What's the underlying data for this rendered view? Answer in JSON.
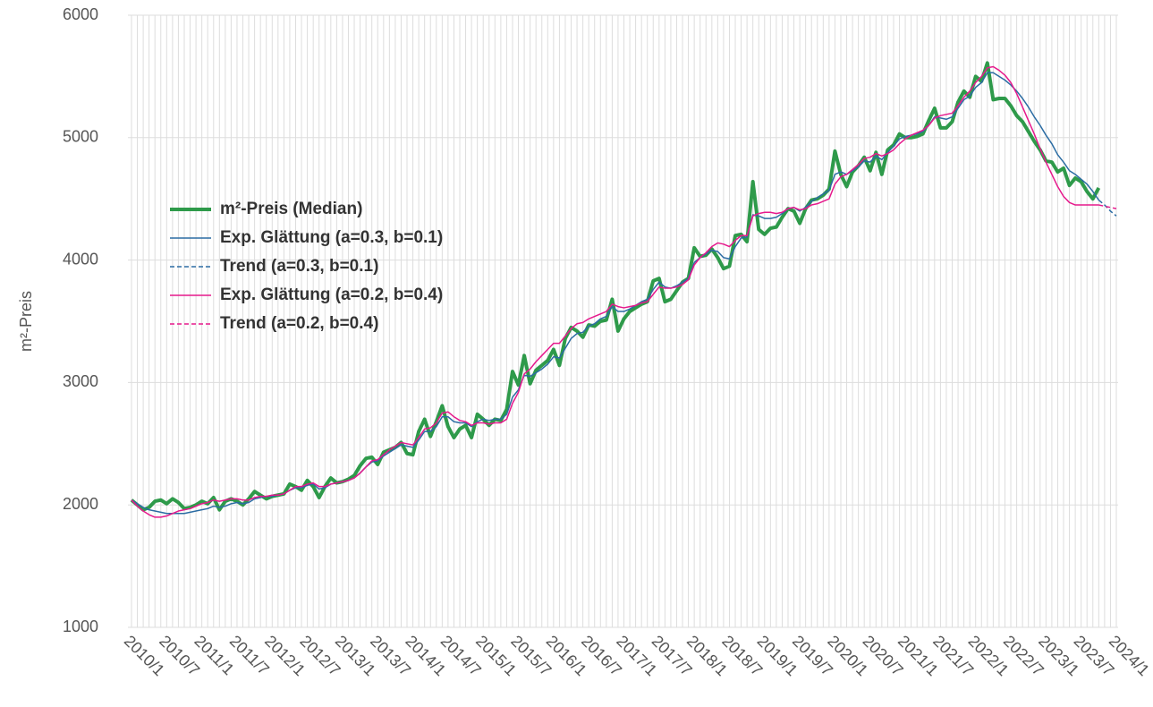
{
  "chart_data": {
    "type": "line",
    "ylabel": "m²-Preis",
    "categories": [
      "2010/1",
      null,
      null,
      null,
      null,
      null,
      "2010/7",
      null,
      null,
      null,
      null,
      null,
      "2011/1",
      null,
      null,
      null,
      null,
      null,
      "2011/7",
      null,
      null,
      null,
      null,
      null,
      "2012/1",
      null,
      null,
      null,
      null,
      null,
      "2012/7",
      null,
      null,
      null,
      null,
      null,
      "2013/1",
      null,
      null,
      null,
      null,
      null,
      "2013/7",
      null,
      null,
      null,
      null,
      null,
      "2014/1",
      null,
      null,
      null,
      null,
      null,
      "2014/7",
      null,
      null,
      null,
      null,
      null,
      "2015/1",
      null,
      null,
      null,
      null,
      null,
      "2015/7",
      null,
      null,
      null,
      null,
      null,
      "2016/1",
      null,
      null,
      null,
      null,
      null,
      "2016/7",
      null,
      null,
      null,
      null,
      null,
      "2017/1",
      null,
      null,
      null,
      null,
      null,
      "2017/7",
      null,
      null,
      null,
      null,
      null,
      "2018/1",
      null,
      null,
      null,
      null,
      null,
      "2018/7",
      null,
      null,
      null,
      null,
      null,
      "2019/1",
      null,
      null,
      null,
      null,
      null,
      "2019/7",
      null,
      null,
      null,
      null,
      null,
      "2020/1",
      null,
      null,
      null,
      null,
      null,
      "2020/7",
      null,
      null,
      null,
      null,
      null,
      "2021/1",
      null,
      null,
      null,
      null,
      null,
      "2021/7",
      null,
      null,
      null,
      null,
      null,
      "2022/1",
      null,
      null,
      null,
      null,
      null,
      "2022/7",
      null,
      null,
      null,
      null,
      null,
      "2023/1",
      null,
      null,
      null,
      null,
      null,
      "2023/7",
      null,
      null,
      null,
      null,
      null,
      "2024/1"
    ],
    "series": [
      {
        "name": "m²-Preis (Median)",
        "color": "#2e9a4a",
        "linewidth": 4,
        "dashed": false,
        "values": [
          2040,
          2000,
          1960,
          1980,
          2030,
          2040,
          2010,
          2050,
          2020,
          1970,
          1980,
          2000,
          2030,
          2010,
          2060,
          1960,
          2030,
          2050,
          2030,
          2000,
          2050,
          2110,
          2080,
          2050,
          2070,
          2080,
          2090,
          2170,
          2150,
          2120,
          2200,
          2150,
          2060,
          2150,
          2220,
          2180,
          2190,
          2210,
          2240,
          2320,
          2380,
          2390,
          2330,
          2430,
          2450,
          2470,
          2510,
          2420,
          2410,
          2600,
          2700,
          2560,
          2680,
          2810,
          2640,
          2550,
          2620,
          2650,
          2550,
          2740,
          2700,
          2650,
          2700,
          2690,
          2780,
          3090,
          2980,
          3220,
          2990,
          3100,
          3140,
          3180,
          3270,
          3140,
          3360,
          3450,
          3420,
          3370,
          3470,
          3460,
          3500,
          3510,
          3680,
          3420,
          3520,
          3580,
          3610,
          3640,
          3660,
          3830,
          3850,
          3660,
          3680,
          3750,
          3820,
          3850,
          4100,
          4030,
          4040,
          4090,
          4020,
          3930,
          3950,
          4200,
          4210,
          4150,
          4640,
          4250,
          4210,
          4260,
          4270,
          4350,
          4420,
          4400,
          4300,
          4420,
          4490,
          4500,
          4530,
          4580,
          4890,
          4700,
          4600,
          4720,
          4770,
          4840,
          4730,
          4880,
          4700,
          4900,
          4940,
          5030,
          5000,
          5000,
          5010,
          5030,
          5140,
          5240,
          5080,
          5080,
          5130,
          5290,
          5380,
          5330,
          5500,
          5460,
          5610,
          5310,
          5320,
          5320,
          5260,
          5180,
          5130,
          5050,
          4970,
          4900,
          4810,
          4800,
          4720,
          4750,
          4610,
          4670,
          4640,
          4560,
          4500,
          4590,
          null,
          null,
          null
        ]
      },
      {
        "name": "Exp. Glättung (a=0.3, b=0.1)",
        "color": "#2b6ca3",
        "linewidth": 1.5,
        "dashed": false,
        "values": [
          2040,
          2010,
          1980,
          1960,
          1950,
          1940,
          1930,
          1930,
          1930,
          1930,
          1940,
          1950,
          1960,
          1970,
          1990,
          1980,
          1990,
          2010,
          2020,
          2010,
          2020,
          2050,
          2060,
          2070,
          2070,
          2080,
          2090,
          2120,
          2140,
          2140,
          2160,
          2170,
          2130,
          2140,
          2170,
          2180,
          2190,
          2200,
          2220,
          2260,
          2310,
          2350,
          2360,
          2400,
          2430,
          2460,
          2490,
          2480,
          2470,
          2530,
          2600,
          2600,
          2640,
          2720,
          2720,
          2680,
          2670,
          2670,
          2640,
          2680,
          2700,
          2690,
          2700,
          2700,
          2740,
          2880,
          2940,
          3060,
          3050,
          3080,
          3110,
          3150,
          3210,
          3200,
          3280,
          3360,
          3400,
          3410,
          3460,
          3480,
          3520,
          3540,
          3620,
          3580,
          3580,
          3600,
          3630,
          3660,
          3680,
          3760,
          3820,
          3780,
          3770,
          3790,
          3820,
          3850,
          3980,
          4020,
          4050,
          4080,
          4070,
          4020,
          4010,
          4110,
          4180,
          4190,
          4370,
          4360,
          4340,
          4340,
          4350,
          4380,
          4420,
          4430,
          4400,
          4430,
          4480,
          4510,
          4540,
          4570,
          4700,
          4720,
          4700,
          4730,
          4760,
          4810,
          4800,
          4850,
          4820,
          4880,
          4930,
          4990,
          5010,
          5020,
          5030,
          5050,
          5100,
          5170,
          5160,
          5150,
          5170,
          5240,
          5310,
          5340,
          5410,
          5450,
          5530,
          5530,
          5500,
          5470,
          5430,
          5380,
          5320,
          5250,
          5170,
          5100,
          5020,
          4950,
          4860,
          4800,
          4730,
          4700,
          4660,
          4620,
          4560,
          4490,
          null,
          null,
          null
        ]
      },
      {
        "name": "Trend (a=0.3, b=0.1)",
        "color": "#2b6ca3",
        "linewidth": 1.5,
        "dashed": true,
        "values": [
          null,
          null,
          null,
          null,
          null,
          null,
          null,
          null,
          null,
          null,
          null,
          null,
          null,
          null,
          null,
          null,
          null,
          null,
          null,
          null,
          null,
          null,
          null,
          null,
          null,
          null,
          null,
          null,
          null,
          null,
          null,
          null,
          null,
          null,
          null,
          null,
          null,
          null,
          null,
          null,
          null,
          null,
          null,
          null,
          null,
          null,
          null,
          null,
          null,
          null,
          null,
          null,
          null,
          null,
          null,
          null,
          null,
          null,
          null,
          null,
          null,
          null,
          null,
          null,
          null,
          null,
          null,
          null,
          null,
          null,
          null,
          null,
          null,
          null,
          null,
          null,
          null,
          null,
          null,
          null,
          null,
          null,
          null,
          null,
          null,
          null,
          null,
          null,
          null,
          null,
          null,
          null,
          null,
          null,
          null,
          null,
          null,
          null,
          null,
          null,
          null,
          null,
          null,
          null,
          null,
          null,
          null,
          null,
          null,
          null,
          null,
          null,
          null,
          null,
          null,
          null,
          null,
          null,
          null,
          null,
          null,
          null,
          null,
          null,
          null,
          null,
          null,
          null,
          null,
          null,
          null,
          null,
          null,
          null,
          null,
          null,
          null,
          null,
          null,
          null,
          null,
          null,
          null,
          null,
          null,
          null,
          null,
          null,
          null,
          null,
          null,
          null,
          null,
          null,
          null,
          null,
          null,
          null,
          null,
          null,
          null,
          null,
          null,
          null,
          null,
          4490,
          4450,
          4400,
          4360
        ]
      },
      {
        "name": "Exp. Glättung (a=0.2, b=0.4)",
        "color": "#e6198c",
        "linewidth": 1.5,
        "dashed": false,
        "values": [
          2040,
          1990,
          1950,
          1920,
          1900,
          1900,
          1910,
          1930,
          1950,
          1960,
          1970,
          1990,
          2010,
          2020,
          2040,
          2030,
          2040,
          2050,
          2050,
          2040,
          2040,
          2060,
          2070,
          2070,
          2080,
          2080,
          2090,
          2120,
          2150,
          2150,
          2170,
          2180,
          2150,
          2150,
          2170,
          2180,
          2190,
          2200,
          2220,
          2260,
          2310,
          2360,
          2370,
          2410,
          2450,
          2480,
          2510,
          2500,
          2490,
          2550,
          2620,
          2630,
          2670,
          2750,
          2760,
          2720,
          2690,
          2680,
          2650,
          2670,
          2670,
          2660,
          2670,
          2670,
          2700,
          2830,
          2920,
          3070,
          3110,
          3170,
          3220,
          3270,
          3320,
          3320,
          3380,
          3440,
          3480,
          3490,
          3520,
          3540,
          3560,
          3580,
          3640,
          3620,
          3610,
          3620,
          3630,
          3650,
          3660,
          3720,
          3780,
          3770,
          3770,
          3780,
          3800,
          3840,
          3960,
          4020,
          4060,
          4110,
          4140,
          4130,
          4110,
          4160,
          4200,
          4200,
          4360,
          4380,
          4390,
          4390,
          4380,
          4390,
          4420,
          4430,
          4410,
          4420,
          4450,
          4460,
          4480,
          4500,
          4620,
          4680,
          4700,
          4740,
          4780,
          4830,
          4840,
          4870,
          4850,
          4870,
          4900,
          4950,
          4990,
          5020,
          5040,
          5060,
          5100,
          5160,
          5180,
          5190,
          5200,
          5260,
          5330,
          5380,
          5450,
          5500,
          5570,
          5580,
          5550,
          5510,
          5450,
          5360,
          5250,
          5140,
          5030,
          4910,
          4800,
          4700,
          4600,
          4520,
          4470,
          4450,
          4450,
          4450,
          4450,
          4450,
          null,
          null,
          null
        ]
      },
      {
        "name": "Trend (a=0.2, b=0.4)",
        "color": "#e6198c",
        "linewidth": 1.5,
        "dashed": true,
        "values": [
          null,
          null,
          null,
          null,
          null,
          null,
          null,
          null,
          null,
          null,
          null,
          null,
          null,
          null,
          null,
          null,
          null,
          null,
          null,
          null,
          null,
          null,
          null,
          null,
          null,
          null,
          null,
          null,
          null,
          null,
          null,
          null,
          null,
          null,
          null,
          null,
          null,
          null,
          null,
          null,
          null,
          null,
          null,
          null,
          null,
          null,
          null,
          null,
          null,
          null,
          null,
          null,
          null,
          null,
          null,
          null,
          null,
          null,
          null,
          null,
          null,
          null,
          null,
          null,
          null,
          null,
          null,
          null,
          null,
          null,
          null,
          null,
          null,
          null,
          null,
          null,
          null,
          null,
          null,
          null,
          null,
          null,
          null,
          null,
          null,
          null,
          null,
          null,
          null,
          null,
          null,
          null,
          null,
          null,
          null,
          null,
          null,
          null,
          null,
          null,
          null,
          null,
          null,
          null,
          null,
          null,
          null,
          null,
          null,
          null,
          null,
          null,
          null,
          null,
          null,
          null,
          null,
          null,
          null,
          null,
          null,
          null,
          null,
          null,
          null,
          null,
          null,
          null,
          null,
          null,
          null,
          null,
          null,
          null,
          null,
          null,
          null,
          null,
          null,
          null,
          null,
          null,
          null,
          null,
          null,
          null,
          null,
          null,
          null,
          null,
          null,
          null,
          null,
          null,
          null,
          null,
          null,
          null,
          null,
          null,
          null,
          null,
          null,
          null,
          null,
          4450,
          4440,
          4430,
          4420
        ]
      }
    ],
    "ylim": [
      1000,
      6000
    ],
    "yticks": [
      1000,
      2000,
      3000,
      4000,
      5000,
      6000
    ],
    "grid": true,
    "legend": "upper left"
  }
}
